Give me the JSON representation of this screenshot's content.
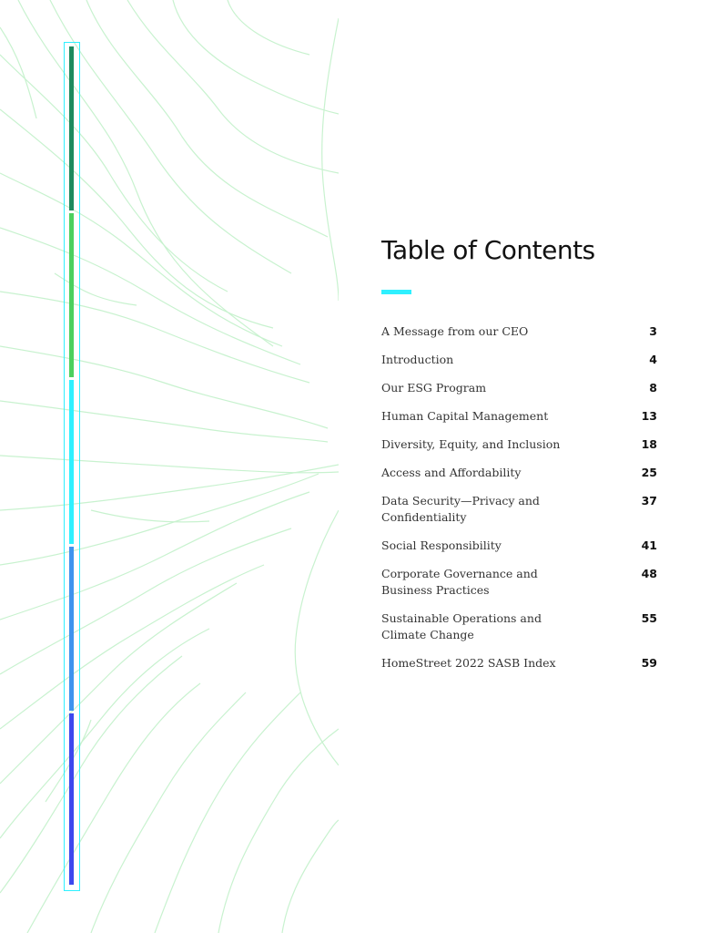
{
  "colors": {
    "background": "#ffffff",
    "pattern_line": "#c8f2cf",
    "bar_border": "#2ff0ff",
    "accent": "#2ff0ff",
    "segments": [
      "#1e8a5e",
      "#4cd05e",
      "#2ff0ff",
      "#3f93ee",
      "#3d48ee"
    ]
  },
  "toc": {
    "title": "Table of Contents",
    "items": [
      {
        "label": "A Message from our CEO",
        "page": "3"
      },
      {
        "label": "Introduction",
        "page": "4"
      },
      {
        "label": "Our ESG Program",
        "page": "8"
      },
      {
        "label": "Human Capital Management",
        "page": "13"
      },
      {
        "label": "Diversity, Equity, and Inclusion",
        "page": "18"
      },
      {
        "label": "Access and Affordability",
        "page": "25"
      },
      {
        "label": "Data Security—Privacy and Confidentiality",
        "page": "37"
      },
      {
        "label": "Social Responsibility",
        "page": "41"
      },
      {
        "label": "Corporate Governance and\nBusiness Practices",
        "page": "48"
      },
      {
        "label": "Sustainable Operations and\nClimate Change",
        "page": "55"
      },
      {
        "label": "HomeStreet 2022 SASB Index",
        "page": "59"
      }
    ]
  }
}
